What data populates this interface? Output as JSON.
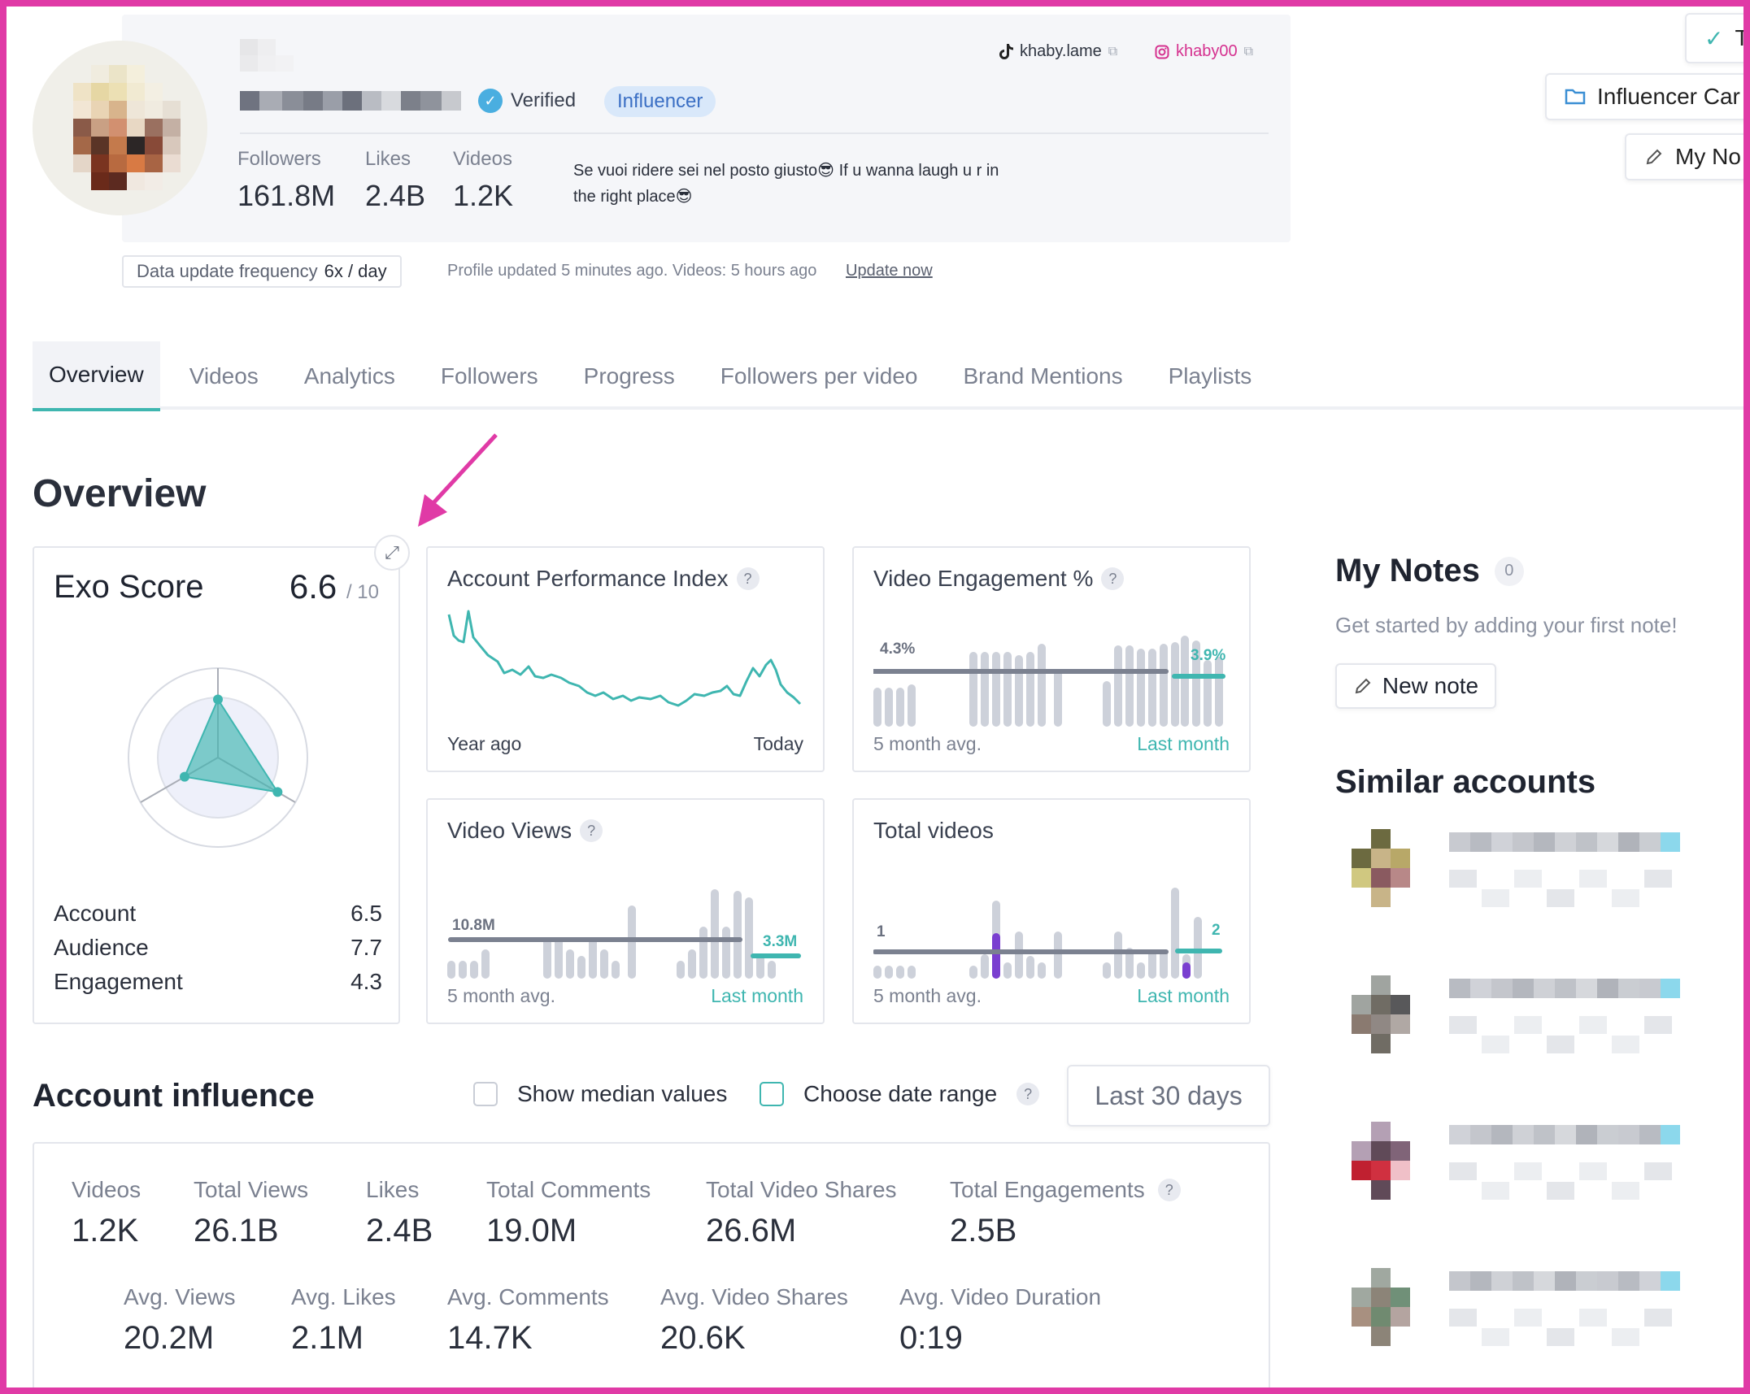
{
  "profile": {
    "verified_label": "Verified",
    "influencer_label": "Influencer",
    "tiktok_handle": "khaby.lame",
    "instagram_handle": "khaby00",
    "stats": [
      {
        "label": "Followers",
        "value": "161.8M"
      },
      {
        "label": "Likes",
        "value": "2.4B"
      },
      {
        "label": "Videos",
        "value": "1.2K"
      }
    ],
    "bio_line1": "Se vuoi ridere sei nel posto giusto😎 If u wanna laugh u r in",
    "bio_line2": "the right place😎"
  },
  "update": {
    "freq_label": "Data update frequency",
    "freq_value": "6x / day",
    "status_text": "Profile updated 5 minutes ago. Videos: 5 hours ago",
    "link": "Update now"
  },
  "top_buttons": {
    "check_label": "T",
    "influencer_cards": "Influencer Car",
    "my_notes": "My No"
  },
  "tabs": [
    "Overview",
    "Videos",
    "Analytics",
    "Followers",
    "Progress",
    "Followers per video",
    "Brand Mentions",
    "Playlists"
  ],
  "overview": {
    "title": "Overview",
    "exo": {
      "title": "Exo Score",
      "score": "6.6",
      "out_of": "/ 10",
      "rows": [
        {
          "label": "Account",
          "value": "6.5"
        },
        {
          "label": "Audience",
          "value": "7.7"
        },
        {
          "label": "Engagement",
          "value": "4.3"
        }
      ]
    },
    "api": {
      "title": "Account Performance Index",
      "left": "Year ago",
      "right": "Today"
    },
    "engagement": {
      "title": "Video Engagement %",
      "avg_value": "4.3%",
      "last_value": "3.9%",
      "avg_label": "5 month avg.",
      "last_label": "Last month"
    },
    "views": {
      "title": "Video Views",
      "avg_value": "10.8M",
      "last_value": "3.3M",
      "avg_label": "5 month avg.",
      "last_label": "Last month"
    },
    "total_videos": {
      "title": "Total videos",
      "avg_value": "1",
      "last_value": "2",
      "avg_label": "5 month avg.",
      "last_label": "Last month"
    }
  },
  "notes": {
    "title": "My Notes",
    "count": "0",
    "empty": "Get started by adding your first note!",
    "new_note": "New note"
  },
  "similar": {
    "title": "Similar accounts"
  },
  "influence": {
    "title": "Account influence",
    "median_label": "Show median values",
    "date_label": "Choose date range",
    "range": "Last 30 days",
    "metrics_row1": [
      {
        "label": "Videos",
        "value": "1.2K"
      },
      {
        "label": "Total Views",
        "value": "26.1B"
      },
      {
        "label": "Likes",
        "value": "2.4B"
      },
      {
        "label": "Total Comments",
        "value": "19.0M"
      },
      {
        "label": "Total Video Shares",
        "value": "26.6M"
      },
      {
        "label": "Total Engagements",
        "value": "2.5B"
      }
    ],
    "metrics_row2": [
      {
        "label": "Avg. Views",
        "value": "20.2M"
      },
      {
        "label": "Avg. Likes",
        "value": "2.1M"
      },
      {
        "label": "Avg. Comments",
        "value": "14.7K"
      },
      {
        "label": "Avg. Video Shares",
        "value": "20.6K"
      },
      {
        "label": "Avg. Video Duration",
        "value": "0:19"
      }
    ]
  },
  "colors": {
    "accent": "#3fb6b0",
    "highlight": "#e03aa6",
    "purple": "#7a3fd0",
    "bar_gray": "#cdd1da",
    "avg_line": "#7b8190"
  }
}
